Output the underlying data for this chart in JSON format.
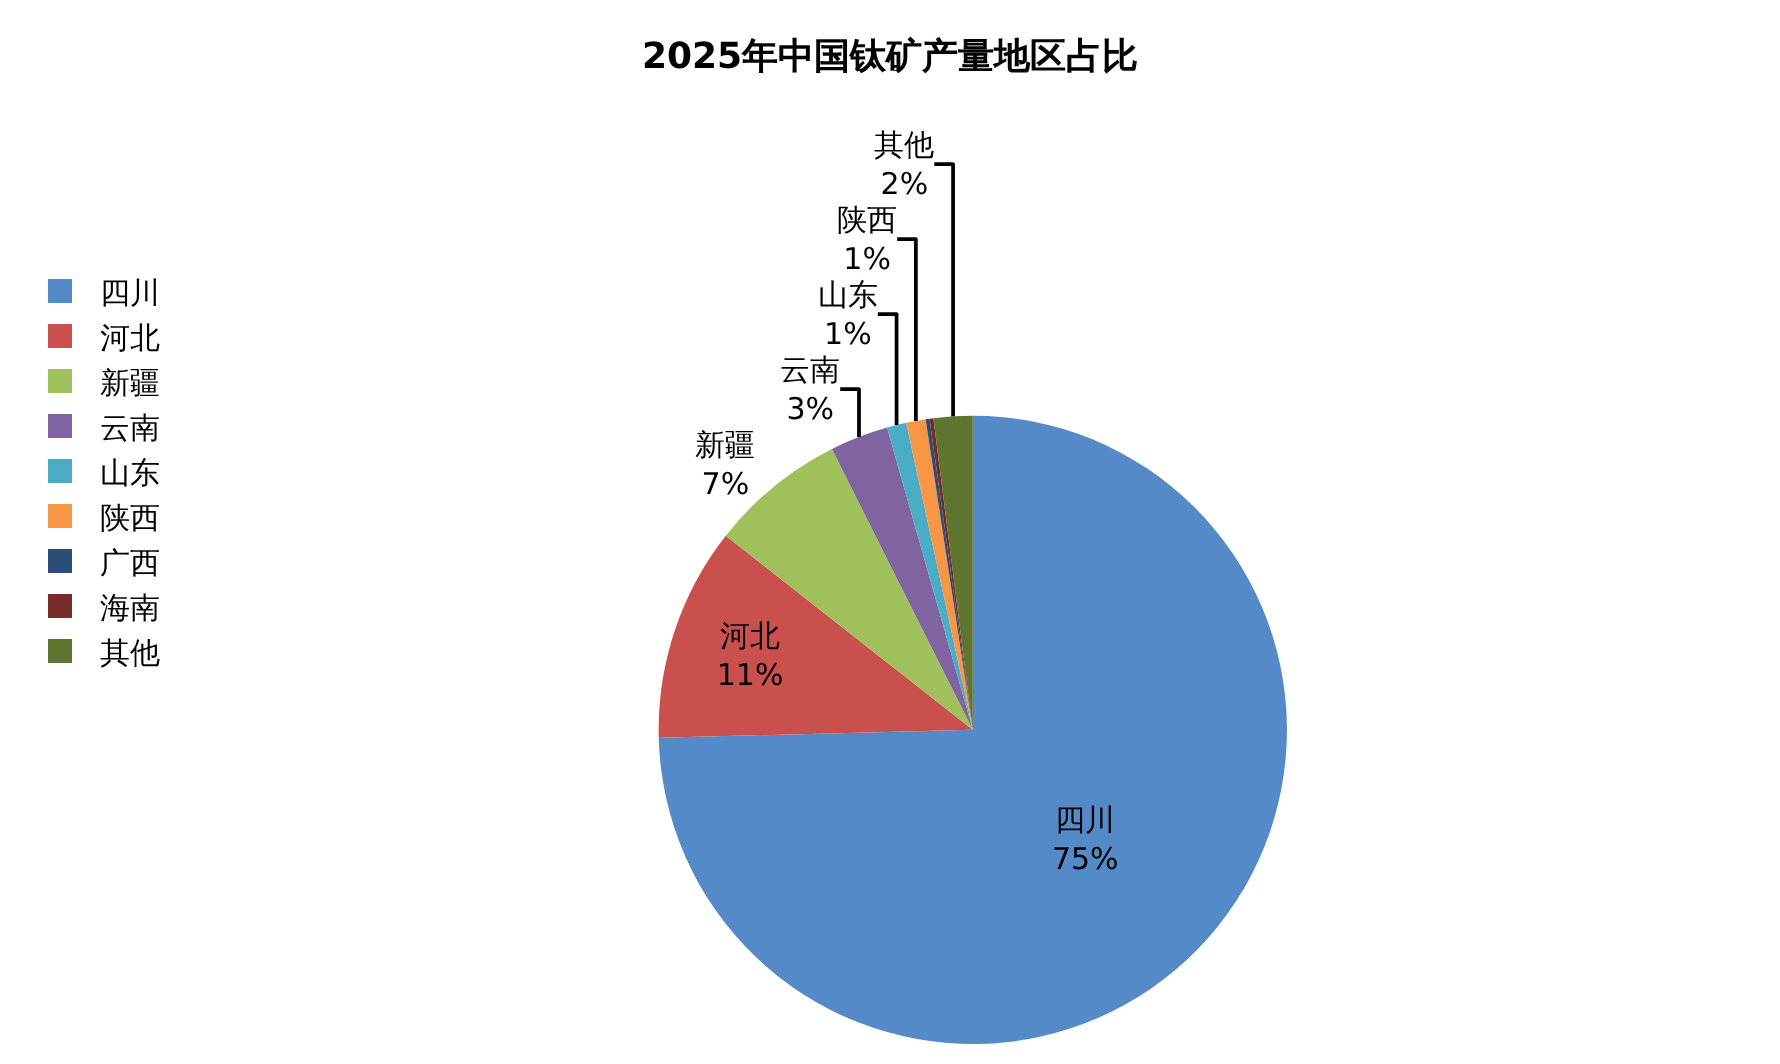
{
  "chart_data": {
    "type": "pie",
    "title": "2025年中国钛矿产量地区占比",
    "categories": [
      "四川",
      "河北",
      "新疆",
      "云南",
      "山东",
      "陕西",
      "广西",
      "海南",
      "其他"
    ],
    "values": [
      74.6,
      11,
      7,
      3,
      1,
      1,
      0.2,
      0.2,
      2
    ],
    "value_labels": [
      "75%",
      "11%",
      "7%",
      "3%",
      "1%",
      "1%",
      null,
      null,
      "2%"
    ],
    "colors": [
      "#558ac8",
      "#c9504d",
      "#9fc05a",
      "#8064a2",
      "#4aacc5",
      "#f79645",
      "#2c4d75",
      "#772c2a",
      "#5f7530"
    ],
    "legend": "left"
  }
}
